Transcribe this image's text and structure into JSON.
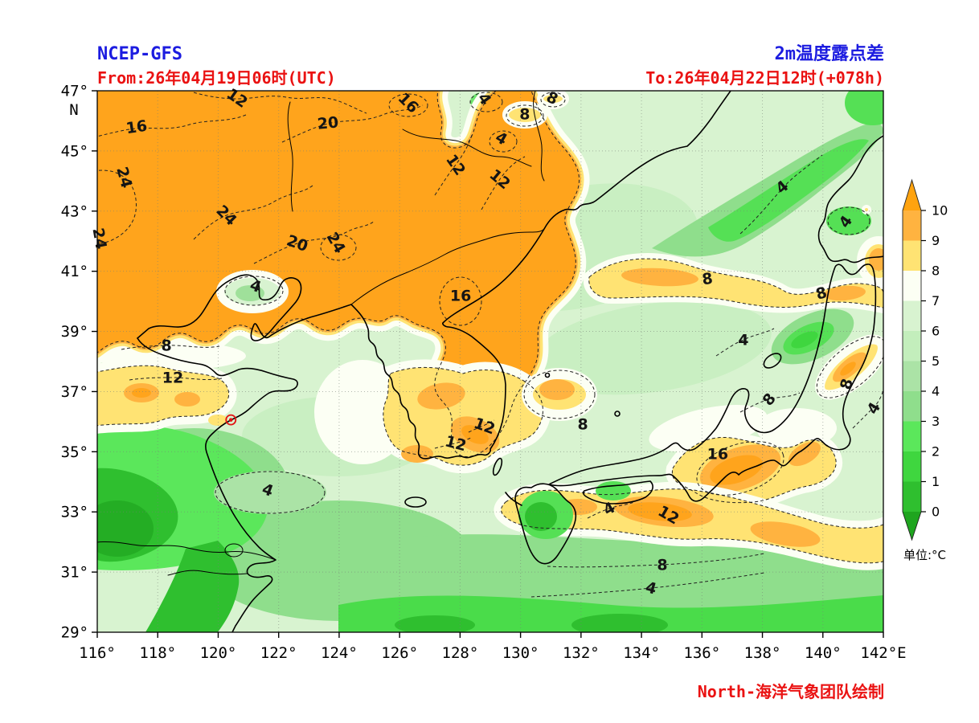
{
  "header": {
    "model_label": "NCEP-GFS",
    "title": "2m温度露点差",
    "from_label": "From:26年04月19日06时(UTC)",
    "to_label": "To:26年04月22日12时(+078h)",
    "credit": "North-海洋气象团队绘制",
    "title_color": "#1c1ce0",
    "time_color": "#ea1212"
  },
  "chart_data": {
    "type": "filled_contour_map",
    "variable": "2m temperature dew-point spread",
    "contour_interval": 4,
    "fill_interval": 1,
    "x_axis": {
      "range": [
        116,
        142
      ],
      "ticks": [
        116,
        118,
        120,
        122,
        124,
        126,
        128,
        130,
        132,
        134,
        136,
        138,
        140,
        142
      ],
      "tick_labels": [
        "116°",
        "118°",
        "120°",
        "122°",
        "124°",
        "126°",
        "128°",
        "130°",
        "132°",
        "134°",
        "136°",
        "138°",
        "140°",
        "142°E"
      ]
    },
    "y_axis": {
      "range": [
        29,
        47
      ],
      "ticks": [
        47,
        45,
        43,
        41,
        39,
        37,
        35,
        33,
        31,
        29
      ],
      "tick_labels": [
        "47°",
        "45°",
        "43°",
        "41°",
        "39°",
        "37°",
        "35°",
        "33°",
        "31°",
        "29°"
      ],
      "hemisphere_label": "N"
    },
    "grid": true,
    "colorbar": {
      "unit_label": "单位:°C",
      "tick_values": [
        10,
        9,
        8,
        7,
        6,
        5,
        4,
        3,
        2,
        1,
        0
      ],
      "segment_colors_top_to_bottom": [
        "#FFB340",
        "#FFE373",
        "#FCFFF4",
        "#D8F3D0",
        "#C3EEBC",
        "#ABE3A6",
        "#8FDE8C",
        "#5BE75B",
        "#3FD63F",
        "#2FBF2F"
      ],
      "over_color": "#FFA30F",
      "under_color": "#1FA51F"
    },
    "contour_labels": [
      {
        "value": 16,
        "lon": 117.3,
        "lat": 45.8,
        "rot": -8
      },
      {
        "value": 12,
        "lon": 120.63,
        "lat": 46.76,
        "rot": 35
      },
      {
        "value": 20,
        "lon": 123.63,
        "lat": 45.93,
        "rot": -5
      },
      {
        "value": 16,
        "lon": 126.29,
        "lat": 46.6,
        "rot": 45
      },
      {
        "value": 24,
        "lon": 116.9,
        "lat": 44.12,
        "rot": 75
      },
      {
        "value": 24,
        "lon": 116.08,
        "lat": 42.09,
        "rot": 80
      },
      {
        "value": 24,
        "lon": 120.28,
        "lat": 42.86,
        "rot": 45
      },
      {
        "value": 20,
        "lon": 122.62,
        "lat": 41.93,
        "rot": 20
      },
      {
        "value": 24,
        "lon": 123.9,
        "lat": 41.95,
        "rot": 60
      },
      {
        "value": 12,
        "lon": 127.86,
        "lat": 44.54,
        "rot": 55
      },
      {
        "value": 12,
        "lon": 129.32,
        "lat": 44.06,
        "rot": 40
      },
      {
        "value": 4,
        "lon": 128.81,
        "lat": 46.73,
        "rot": 55
      },
      {
        "value": 8,
        "lon": 131.05,
        "lat": 46.76,
        "rot": 25
      },
      {
        "value": 8,
        "lon": 130.14,
        "lat": 46.23,
        "rot": 0
      },
      {
        "value": 4,
        "lon": 129.37,
        "lat": 45.42,
        "rot": 30
      },
      {
        "value": 16,
        "lon": 128.02,
        "lat": 40.19,
        "rot": 0
      },
      {
        "value": 8,
        "lon": 118.29,
        "lat": 38.53,
        "rot": 0
      },
      {
        "value": 12,
        "lon": 118.5,
        "lat": 37.47,
        "rot": 0
      },
      {
        "value": 4,
        "lon": 121.24,
        "lat": 40.51,
        "rot": 20
      },
      {
        "value": 8,
        "lon": 136.18,
        "lat": 40.75,
        "rot": -8
      },
      {
        "value": 4,
        "lon": 138.65,
        "lat": 43.8,
        "rot": -40
      },
      {
        "value": 4,
        "lon": 140.75,
        "lat": 42.65,
        "rot": -55
      },
      {
        "value": 8,
        "lon": 139.95,
        "lat": 40.27,
        "rot": -15
      },
      {
        "value": 8,
        "lon": 140.78,
        "lat": 37.25,
        "rot": -75
      },
      {
        "value": 12,
        "lon": 127.86,
        "lat": 35.28,
        "rot": 15
      },
      {
        "value": 12,
        "lon": 128.81,
        "lat": 35.86,
        "rot": 20
      },
      {
        "value": 8,
        "lon": 132.06,
        "lat": 35.92,
        "rot": 0
      },
      {
        "value": 16,
        "lon": 136.52,
        "lat": 34.93,
        "rot": 0
      },
      {
        "value": 8,
        "lon": 138.22,
        "lat": 36.74,
        "rot": -50
      },
      {
        "value": 4,
        "lon": 137.37,
        "lat": 38.72,
        "rot": 0
      },
      {
        "value": 4,
        "lon": 141.68,
        "lat": 36.45,
        "rot": -60
      },
      {
        "value": 4,
        "lon": 132.93,
        "lat": 33.11,
        "rot": -30
      },
      {
        "value": 12,
        "lon": 134.9,
        "lat": 32.9,
        "rot": 30
      },
      {
        "value": 8,
        "lon": 134.69,
        "lat": 31.24,
        "rot": 0
      },
      {
        "value": 4,
        "lon": 134.32,
        "lat": 30.47,
        "rot": 15
      },
      {
        "value": 4,
        "lon": 121.64,
        "lat": 33.73,
        "rot": 20
      }
    ],
    "station_marker": {
      "lon": 120.42,
      "lat": 36.06,
      "color": "#e11414"
    }
  }
}
